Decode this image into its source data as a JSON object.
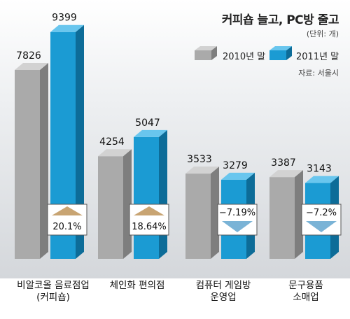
{
  "header": {
    "title": "커피숍 늘고, PC방 줄고",
    "unit": "(단위: 개)",
    "source": "자료: 서울시"
  },
  "legend": {
    "items": [
      {
        "label": "2010년 말",
        "color": "#a9a9a9"
      },
      {
        "label": "2011년 말",
        "color": "#1b9bd3"
      }
    ]
  },
  "chart_data": {
    "type": "bar",
    "title": "커피숍 늘고, PC방 줄고",
    "categories": [
      {
        "line1": "비알코올 음료점업",
        "line2": "(커피숍)"
      },
      {
        "line1": "체인화 편의점",
        "line2": ""
      },
      {
        "line1": "컴퓨터 게임방",
        "line2": "운영업"
      },
      {
        "line1": "문구용품",
        "line2": "소매업"
      }
    ],
    "series": [
      {
        "name": "2010년 말",
        "values": [
          7826,
          4254,
          3533,
          3387
        ]
      },
      {
        "name": "2011년 말",
        "values": [
          9399,
          5047,
          3279,
          3143
        ]
      }
    ],
    "changes": [
      "20.1%",
      "18.64%",
      "−7.19%",
      "−7.2%"
    ],
    "change_direction": [
      "up",
      "up",
      "down",
      "down"
    ],
    "colors": {
      "series_2010": "#a9a9a9",
      "series_2011": "#1b9bd3",
      "up": "#c8a472",
      "down": "#7ab3d6"
    },
    "ylim": [
      0,
      10000
    ],
    "grid": false,
    "legend_position": "top-right"
  }
}
